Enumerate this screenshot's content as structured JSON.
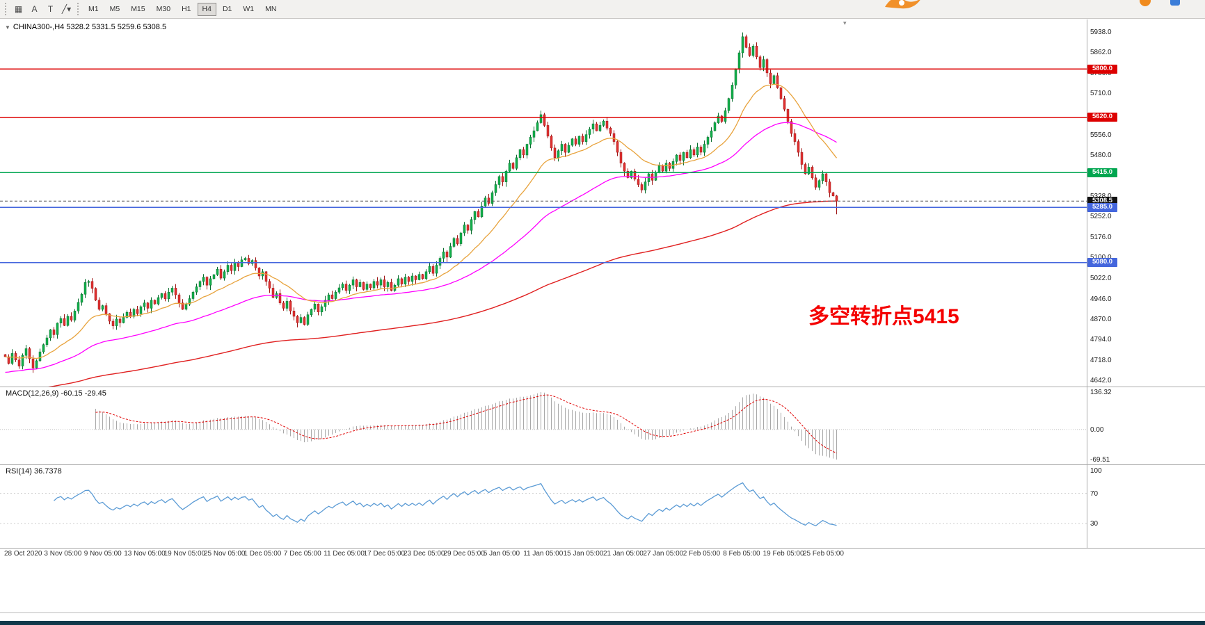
{
  "toolbar": {
    "tools": [
      {
        "name": "chart-grid-tool",
        "glyph": "▦"
      },
      {
        "name": "font-tool",
        "glyph": "A"
      },
      {
        "name": "text-label-tool",
        "glyph": "T"
      },
      {
        "name": "line-style-tool",
        "glyph": "╱▾"
      }
    ],
    "timeframes": [
      {
        "label": "M1",
        "active": false
      },
      {
        "label": "M5",
        "active": false
      },
      {
        "label": "M15",
        "active": false
      },
      {
        "label": "M30",
        "active": false
      },
      {
        "label": "H1",
        "active": false
      },
      {
        "label": "H4",
        "active": true
      },
      {
        "label": "D1",
        "active": false
      },
      {
        "label": "W1",
        "active": false
      },
      {
        "label": "MN",
        "active": false
      }
    ]
  },
  "chart": {
    "symbol_title": "CHINA300-,H4  5328.2 5331.5 5259.6 5308.5",
    "annotation": {
      "text": "多空转折点5415",
      "color": "#f40000"
    },
    "ylim": [
      4619,
      5984
    ],
    "colors": {
      "up": "#12b04b",
      "up_border": "#0a6e2f",
      "down": "#e03131",
      "down_border": "#9e1515",
      "ma_fast": "#e8a33d",
      "ma_mid": "#ff00ff",
      "ma_slow": "#e02020",
      "macd_hist": "#a8a8a8",
      "macd_signal": "#e00000",
      "rsi_line": "#5b9bd5"
    },
    "levels": [
      {
        "value": 5800.0,
        "label": "5800.0",
        "color": "#dd0000"
      },
      {
        "value": 5620.0,
        "label": "5620.0",
        "color": "#dd0000"
      },
      {
        "value": 5415.0,
        "label": "5415.0",
        "color": "#00a650"
      },
      {
        "value": 5285.0,
        "label": "5285.0",
        "color": "#4466dd"
      },
      {
        "value": 5080.0,
        "label": "5080.0",
        "color": "#4466dd"
      }
    ],
    "current_price": {
      "value": 5308.5,
      "label": "5308.5",
      "badge_color": "#111111"
    },
    "y_ticks": [
      5938.0,
      5862.0,
      5786.0,
      5710.0,
      5556.0,
      5480.0,
      5404.0,
      5328.0,
      5252.0,
      5176.0,
      5100.0,
      5022.0,
      4946.0,
      4870.0,
      4794.0,
      4718.0,
      4642.0
    ]
  },
  "chart_data": {
    "type": "candlestick",
    "symbol": "CHINA300-",
    "timeframe": "H4",
    "ohlc_last": {
      "open": 5328.2,
      "high": 5331.5,
      "low": 5259.6,
      "close": 5308.5
    },
    "closes": [
      4730,
      4705,
      4742,
      4718,
      4695,
      4735,
      4760,
      4722,
      4688,
      4715,
      4748,
      4775,
      4800,
      4830,
      4812,
      4855,
      4872,
      4846,
      4880,
      4866,
      4900,
      4932,
      4962,
      5006,
      5010,
      4984,
      4940,
      4906,
      4920,
      4890,
      4862,
      4845,
      4870,
      4856,
      4876,
      4895,
      4880,
      4906,
      4890,
      4916,
      4930,
      4910,
      4940,
      4926,
      4950,
      4965,
      4945,
      4970,
      4985,
      4960,
      4930,
      4906,
      4925,
      4946,
      4970,
      4990,
      5010,
      5026,
      4996,
      5020,
      5035,
      5055,
      5022,
      5046,
      5070,
      5050,
      5080,
      5065,
      5090,
      5096,
      5076,
      5088,
      5060,
      5030,
      5046,
      5010,
      4985,
      4950,
      4965,
      4930,
      4910,
      4936,
      4900,
      4880,
      4856,
      4876,
      4850,
      4886,
      4906,
      4926,
      4896,
      4916,
      4940,
      4960,
      4946,
      4970,
      4986,
      5000,
      4976,
      4996,
      5016,
      4990,
      5006,
      4980,
      5000,
      4986,
      5010,
      4996,
      5016,
      4990,
      5006,
      4976,
      4996,
      5020,
      5000,
      5026,
      5010,
      5030,
      5016,
      5036,
      5020,
      5046,
      5066,
      5040,
      5070,
      5096,
      5120,
      5100,
      5140,
      5170,
      5150,
      5190,
      5220,
      5200,
      5240,
      5270,
      5250,
      5290,
      5320,
      5300,
      5340,
      5370,
      5400,
      5380,
      5420,
      5450,
      5430,
      5470,
      5500,
      5480,
      5520,
      5546,
      5570,
      5600,
      5630,
      5590,
      5550,
      5506,
      5470,
      5496,
      5520,
      5490,
      5516,
      5540,
      5520,
      5550,
      5530,
      5556,
      5576,
      5596,
      5570,
      5590,
      5606,
      5580,
      5560,
      5530,
      5490,
      5450,
      5420,
      5396,
      5420,
      5390,
      5370,
      5350,
      5380,
      5410,
      5386,
      5416,
      5440,
      5420,
      5450,
      5430,
      5456,
      5480,
      5460,
      5490,
      5470,
      5500,
      5480,
      5510,
      5490,
      5520,
      5546,
      5570,
      5600,
      5625,
      5605,
      5645,
      5690,
      5740,
      5800,
      5860,
      5920,
      5880,
      5850,
      5885,
      5845,
      5805,
      5835,
      5785,
      5745,
      5775,
      5730,
      5690,
      5650,
      5605,
      5560,
      5530,
      5490,
      5445,
      5410,
      5435,
      5395,
      5360,
      5385,
      5410,
      5380,
      5340,
      5328,
      5308.5
    ],
    "x_labels": [
      "28 Oct 2020",
      "3 Nov 05:00",
      "9 Nov 05:00",
      "13 Nov 05:00",
      "19 Nov 05:00",
      "25 Nov 05:00",
      "1 Dec 05:00",
      "7 Dec 05:00",
      "11 Dec 05:00",
      "17 Dec 05:00",
      "23 Dec 05:00",
      "29 Dec 05:00",
      "5 Jan 05:00",
      "11 Jan 05:00",
      "15 Jan 05:00",
      "21 Jan 05:00",
      "27 Jan 05:00",
      "2 Feb 05:00",
      "8 Feb 05:00",
      "19 Feb 05:00",
      "25 Feb 05:00"
    ]
  },
  "macd": {
    "label": "MACD(12,26,9) -60.15 -29.45",
    "params": [
      12,
      26,
      9
    ],
    "values": {
      "macd": -60.15,
      "signal": -29.45
    },
    "axis_ticks": [
      "136.32",
      "0.00",
      "-69.51"
    ]
  },
  "rsi": {
    "label": "RSI(14) 36.7378",
    "period": 14,
    "value": 36.7378,
    "axis_ticks": [
      100,
      70,
      30
    ]
  }
}
